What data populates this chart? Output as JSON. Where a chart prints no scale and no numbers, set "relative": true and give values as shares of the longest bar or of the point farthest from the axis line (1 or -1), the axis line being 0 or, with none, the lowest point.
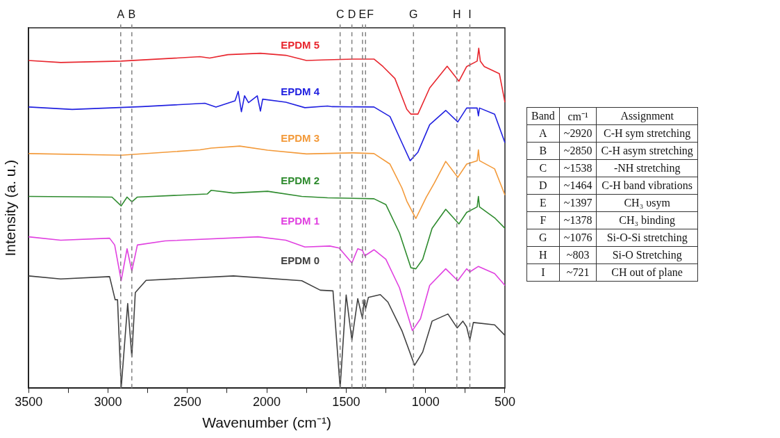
{
  "chart_data": [
    {
      "type": "line",
      "relative": true,
      "xlabel": "Wavenumber (cm⁻¹)",
      "ylabel": "Intensity (a. u.)",
      "xlim": [
        3500,
        500
      ],
      "xticks": [
        3500,
        {
          "value": 3250,
          "label": null
        },
        3000,
        {
          "value": 2750,
          "label": null
        },
        2500,
        {
          "value": 2250,
          "label": null
        },
        2000,
        {
          "value": 1750,
          "label": null
        },
        1500,
        {
          "value": 1250,
          "label": null
        },
        1000,
        {
          "value": 750,
          "label": null
        },
        500
      ],
      "grid": false,
      "legend": false,
      "tick_labels": "x",
      "marker": "none",
      "line_style": "solid",
      "ref_lines": [
        {
          "axis": "x",
          "value": 2920,
          "label": "A",
          "color": "#808080",
          "line_style": "dashed"
        },
        {
          "axis": "x",
          "value": 2850,
          "label": "B",
          "color": "#808080",
          "line_style": "dashed"
        },
        {
          "axis": "x",
          "value": 1538,
          "label": "C",
          "color": "#808080",
          "line_style": "dashed"
        },
        {
          "axis": "x",
          "value": 1464,
          "label": "D",
          "color": "#808080",
          "line_style": "dashed"
        },
        {
          "axis": "x",
          "value": 1397,
          "label": "E",
          "color": "#808080",
          "line_style": "dashed"
        },
        {
          "axis": "x",
          "value": 1378,
          "label": "F",
          "color": "#808080",
          "line_style": "dashed"
        },
        {
          "axis": "x",
          "value": 1076,
          "label": "G",
          "color": "#808080",
          "line_style": "dashed"
        },
        {
          "axis": "x",
          "value": 803,
          "label": "H",
          "color": "#808080",
          "line_style": "dashed"
        },
        {
          "axis": "x",
          "value": 721,
          "label": "I",
          "color": "#808080",
          "line_style": "dashed"
        }
      ],
      "series": [
        {
          "name": "EPDM 5",
          "color": "#e8262e",
          "x": [
            3500,
            3298,
            2917,
            2421,
            2360,
            2245,
            2040,
            1880,
            1750,
            1617,
            1456,
            1325,
            1268,
            1193,
            1118,
            1092,
            1048,
            974,
            864,
            790,
            741,
            675,
            665,
            655,
            630,
            535,
            500
          ],
          "values": [
            0.964,
            0.958,
            0.962,
            0.975,
            0.971,
            0.981,
            0.985,
            0.979,
            0.964,
            0.966,
            0.968,
            0.968,
            0.946,
            0.911,
            0.82,
            0.806,
            0.806,
            0.883,
            0.947,
            0.903,
            0.946,
            0.962,
            1.0,
            0.962,
            0.946,
            0.925,
            0.841
          ]
        },
        {
          "name": "EPDM 4",
          "color": "#2020e0",
          "x": [
            3500,
            3225,
            2786,
            2390,
            2320,
            2200,
            2180,
            2160,
            2140,
            2115,
            2060,
            2040,
            2026,
            1880,
            1760,
            1617,
            1588,
            1325,
            1224,
            1149,
            1097,
            1048,
            974,
            873,
            797,
            741,
            675,
            667,
            660,
            565,
            500
          ],
          "values": [
            0.827,
            0.82,
            0.828,
            0.838,
            0.827,
            0.845,
            0.873,
            0.813,
            0.86,
            0.84,
            0.86,
            0.815,
            0.85,
            0.841,
            0.825,
            0.83,
            0.828,
            0.827,
            0.799,
            0.722,
            0.669,
            0.694,
            0.775,
            0.817,
            0.783,
            0.824,
            0.824,
            0.801,
            0.824,
            0.806,
            0.722
          ]
        },
        {
          "name": "EPDM 3",
          "color": "#f39a3a",
          "x": [
            3500,
            2917,
            2421,
            2350,
            2170,
            1995,
            1750,
            1456,
            1325,
            1224,
            1149,
            1118,
            1061,
            996,
            945,
            873,
            797,
            741,
            675,
            667,
            660,
            565,
            500
          ],
          "values": [
            0.69,
            0.685,
            0.701,
            0.706,
            0.712,
            0.7,
            0.689,
            0.692,
            0.69,
            0.659,
            0.589,
            0.55,
            0.499,
            0.561,
            0.603,
            0.667,
            0.62,
            0.659,
            0.669,
            0.701,
            0.669,
            0.645,
            0.568
          ]
        },
        {
          "name": "EPDM 2",
          "color": "#2e8b2e",
          "x": [
            3500,
            2975,
            2917,
            2880,
            2850,
            2815,
            2375,
            2350,
            2210,
            1995,
            1780,
            1617,
            1325,
            1250,
            1164,
            1092,
            1061,
            1018,
            959,
            873,
            790,
            741,
            675,
            667,
            660,
            565,
            500
          ],
          "values": [
            0.564,
            0.562,
            0.536,
            0.562,
            0.548,
            0.562,
            0.571,
            0.582,
            0.574,
            0.579,
            0.564,
            0.56,
            0.557,
            0.54,
            0.456,
            0.354,
            0.351,
            0.379,
            0.47,
            0.526,
            0.483,
            0.517,
            0.533,
            0.564,
            0.533,
            0.501,
            0.47
          ]
        },
        {
          "name": "EPDM 1",
          "color": "#e040e0",
          "x": [
            3500,
            3298,
            2990,
            2958,
            2917,
            2880,
            2850,
            2815,
            2640,
            2055,
            1880,
            1760,
            1603,
            1544,
            1464,
            1427,
            1397,
            1383,
            1325,
            1250,
            1164,
            1083,
            1032,
            974,
            873,
            797,
            741,
            721,
            667,
            565,
            500
          ],
          "values": [
            0.445,
            0.435,
            0.441,
            0.421,
            0.316,
            0.41,
            0.344,
            0.421,
            0.433,
            0.445,
            0.435,
            0.415,
            0.418,
            0.412,
            0.368,
            0.41,
            0.405,
            0.389,
            0.407,
            0.379,
            0.295,
            0.169,
            0.204,
            0.302,
            0.351,
            0.316,
            0.351,
            0.342,
            0.358,
            0.337,
            0.302
          ]
        },
        {
          "name": "EPDM 0",
          "color": "#404040",
          "x": [
            3500,
            3298,
            2990,
            2955,
            2940,
            2917,
            2876,
            2850,
            2828,
            2760,
            2210,
            1780,
            1663,
            1583,
            1538,
            1500,
            1464,
            1427,
            1397,
            1387,
            1378,
            1360,
            1285,
            1237,
            1149,
            1069,
            1018,
            959,
            859,
            801,
            765,
            741,
            721,
            699,
            565,
            500
          ],
          "values": [
            0.33,
            0.321,
            0.328,
            0.26,
            0.26,
            0.0,
            0.249,
            0.092,
            0.281,
            0.317,
            0.33,
            0.316,
            0.288,
            0.286,
            0.0,
            0.274,
            0.141,
            0.263,
            0.204,
            0.26,
            0.232,
            0.267,
            0.275,
            0.253,
            0.169,
            0.067,
            0.106,
            0.197,
            0.218,
            0.177,
            0.197,
            0.18,
            0.141,
            0.193,
            0.186,
            0.155
          ]
        }
      ]
    },
    {
      "type": "other",
      "categories": [
        "Band",
        "cm⁻¹",
        "Assignment"
      ],
      "annotations": [
        "A",
        "~2920",
        "C-H sym stretching",
        "B",
        "~2850",
        "C-H asym stretching",
        "C",
        "~1538",
        "-NH stretching",
        "D",
        "~1464",
        "C-H band vibrations",
        "E",
        "~1397",
        "CH₃ υsym",
        "F",
        "~1378",
        "CH₃ binding",
        "G",
        "~1076",
        "Si-O-Si stretching",
        "H",
        "~803",
        "Si-O Stretching",
        "I",
        "~721",
        "CH out of plane"
      ]
    }
  ]
}
